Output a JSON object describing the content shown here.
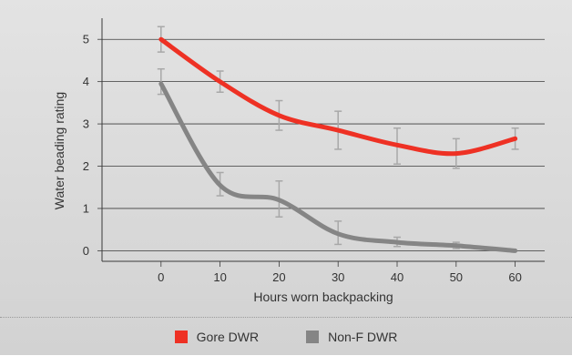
{
  "chart_data": {
    "type": "line",
    "xlabel": "Hours worn backpacking",
    "ylabel": "Water beading rating",
    "xlim": [
      -10,
      65
    ],
    "ylim": [
      -0.25,
      5.5
    ],
    "x_ticks": [
      0,
      10,
      20,
      30,
      40,
      50,
      60
    ],
    "y_ticks": [
      0,
      1,
      2,
      3,
      4,
      5
    ],
    "grid": {
      "horizontal": true,
      "vertical": false
    },
    "legend_position": "bottom",
    "x": [
      0,
      10,
      20,
      30,
      40,
      50,
      60
    ],
    "series": [
      {
        "name": "Gore DWR",
        "color": "#ee3124",
        "values": [
          5.0,
          4.0,
          3.2,
          2.85,
          2.5,
          2.3,
          2.65
        ],
        "error_low": [
          4.7,
          3.75,
          2.85,
          2.4,
          2.05,
          1.95,
          2.4
        ],
        "error_high": [
          5.3,
          4.25,
          3.55,
          3.3,
          2.9,
          2.65,
          2.9
        ]
      },
      {
        "name": "Non-F DWR",
        "color": "#858585",
        "values": [
          3.95,
          1.55,
          1.2,
          0.4,
          0.2,
          0.12,
          0.0
        ],
        "error_low": [
          3.7,
          1.3,
          0.8,
          0.15,
          0.1,
          0.05,
          0.0
        ],
        "error_high": [
          4.3,
          1.85,
          1.65,
          0.7,
          0.32,
          0.2,
          0.0
        ]
      }
    ]
  }
}
